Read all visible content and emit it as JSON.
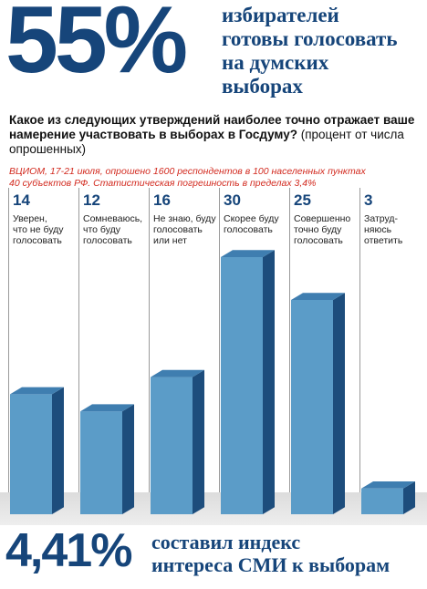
{
  "headline": {
    "percent": "55%",
    "caption_lines": [
      "избирателей",
      "готовы голосовать",
      "на думских",
      "выборах"
    ]
  },
  "question": {
    "bold": "Какое из следующих утверждений наиболее точно отражает ваше намерение участвовать в выборах в Госдуму?",
    "note": "(процент от числа опрошенных)"
  },
  "source": {
    "lines": [
      "ВЦИОМ, 17-21 июля, опрошено 1600 респондентов в 100 населенных пунктах",
      "40 субъектов РФ. Статистическая погрешность в пределах 3,4%"
    ]
  },
  "chart_data": {
    "type": "bar",
    "categories": [
      "Уверен, что не буду голосовать",
      "Сомневаюсь, что буду голосовать",
      "Не знаю, буду голосовать или нет",
      "Скорее буду голосовать",
      "Совершенно точно буду голосовать",
      "Затрудняюсь ответить"
    ],
    "label_lines": [
      [
        "Уверен,",
        "что не буду",
        "голосовать"
      ],
      [
        "Сомневаюсь,",
        "что буду",
        "голосовать"
      ],
      [
        "Не знаю, буду",
        "голосовать",
        "или нет"
      ],
      [
        "Скорее буду",
        "голосовать"
      ],
      [
        "Совершенно",
        "точно буду",
        "голосовать"
      ],
      [
        "Затруд-",
        "няюсь",
        "ответить"
      ]
    ],
    "values": [
      14,
      12,
      16,
      30,
      25,
      3
    ],
    "value_labels": [
      "14",
      "12",
      "16",
      "30",
      "25",
      "3"
    ],
    "ylim": [
      0,
      30
    ],
    "colors": {
      "front": "#5b9cc8",
      "side": "#1d4d7c",
      "top": "#3f7eb0"
    }
  },
  "footer": {
    "percent": "4,41%",
    "caption_lines": [
      "составил индекс",
      "интереса СМИ к выборам"
    ]
  }
}
